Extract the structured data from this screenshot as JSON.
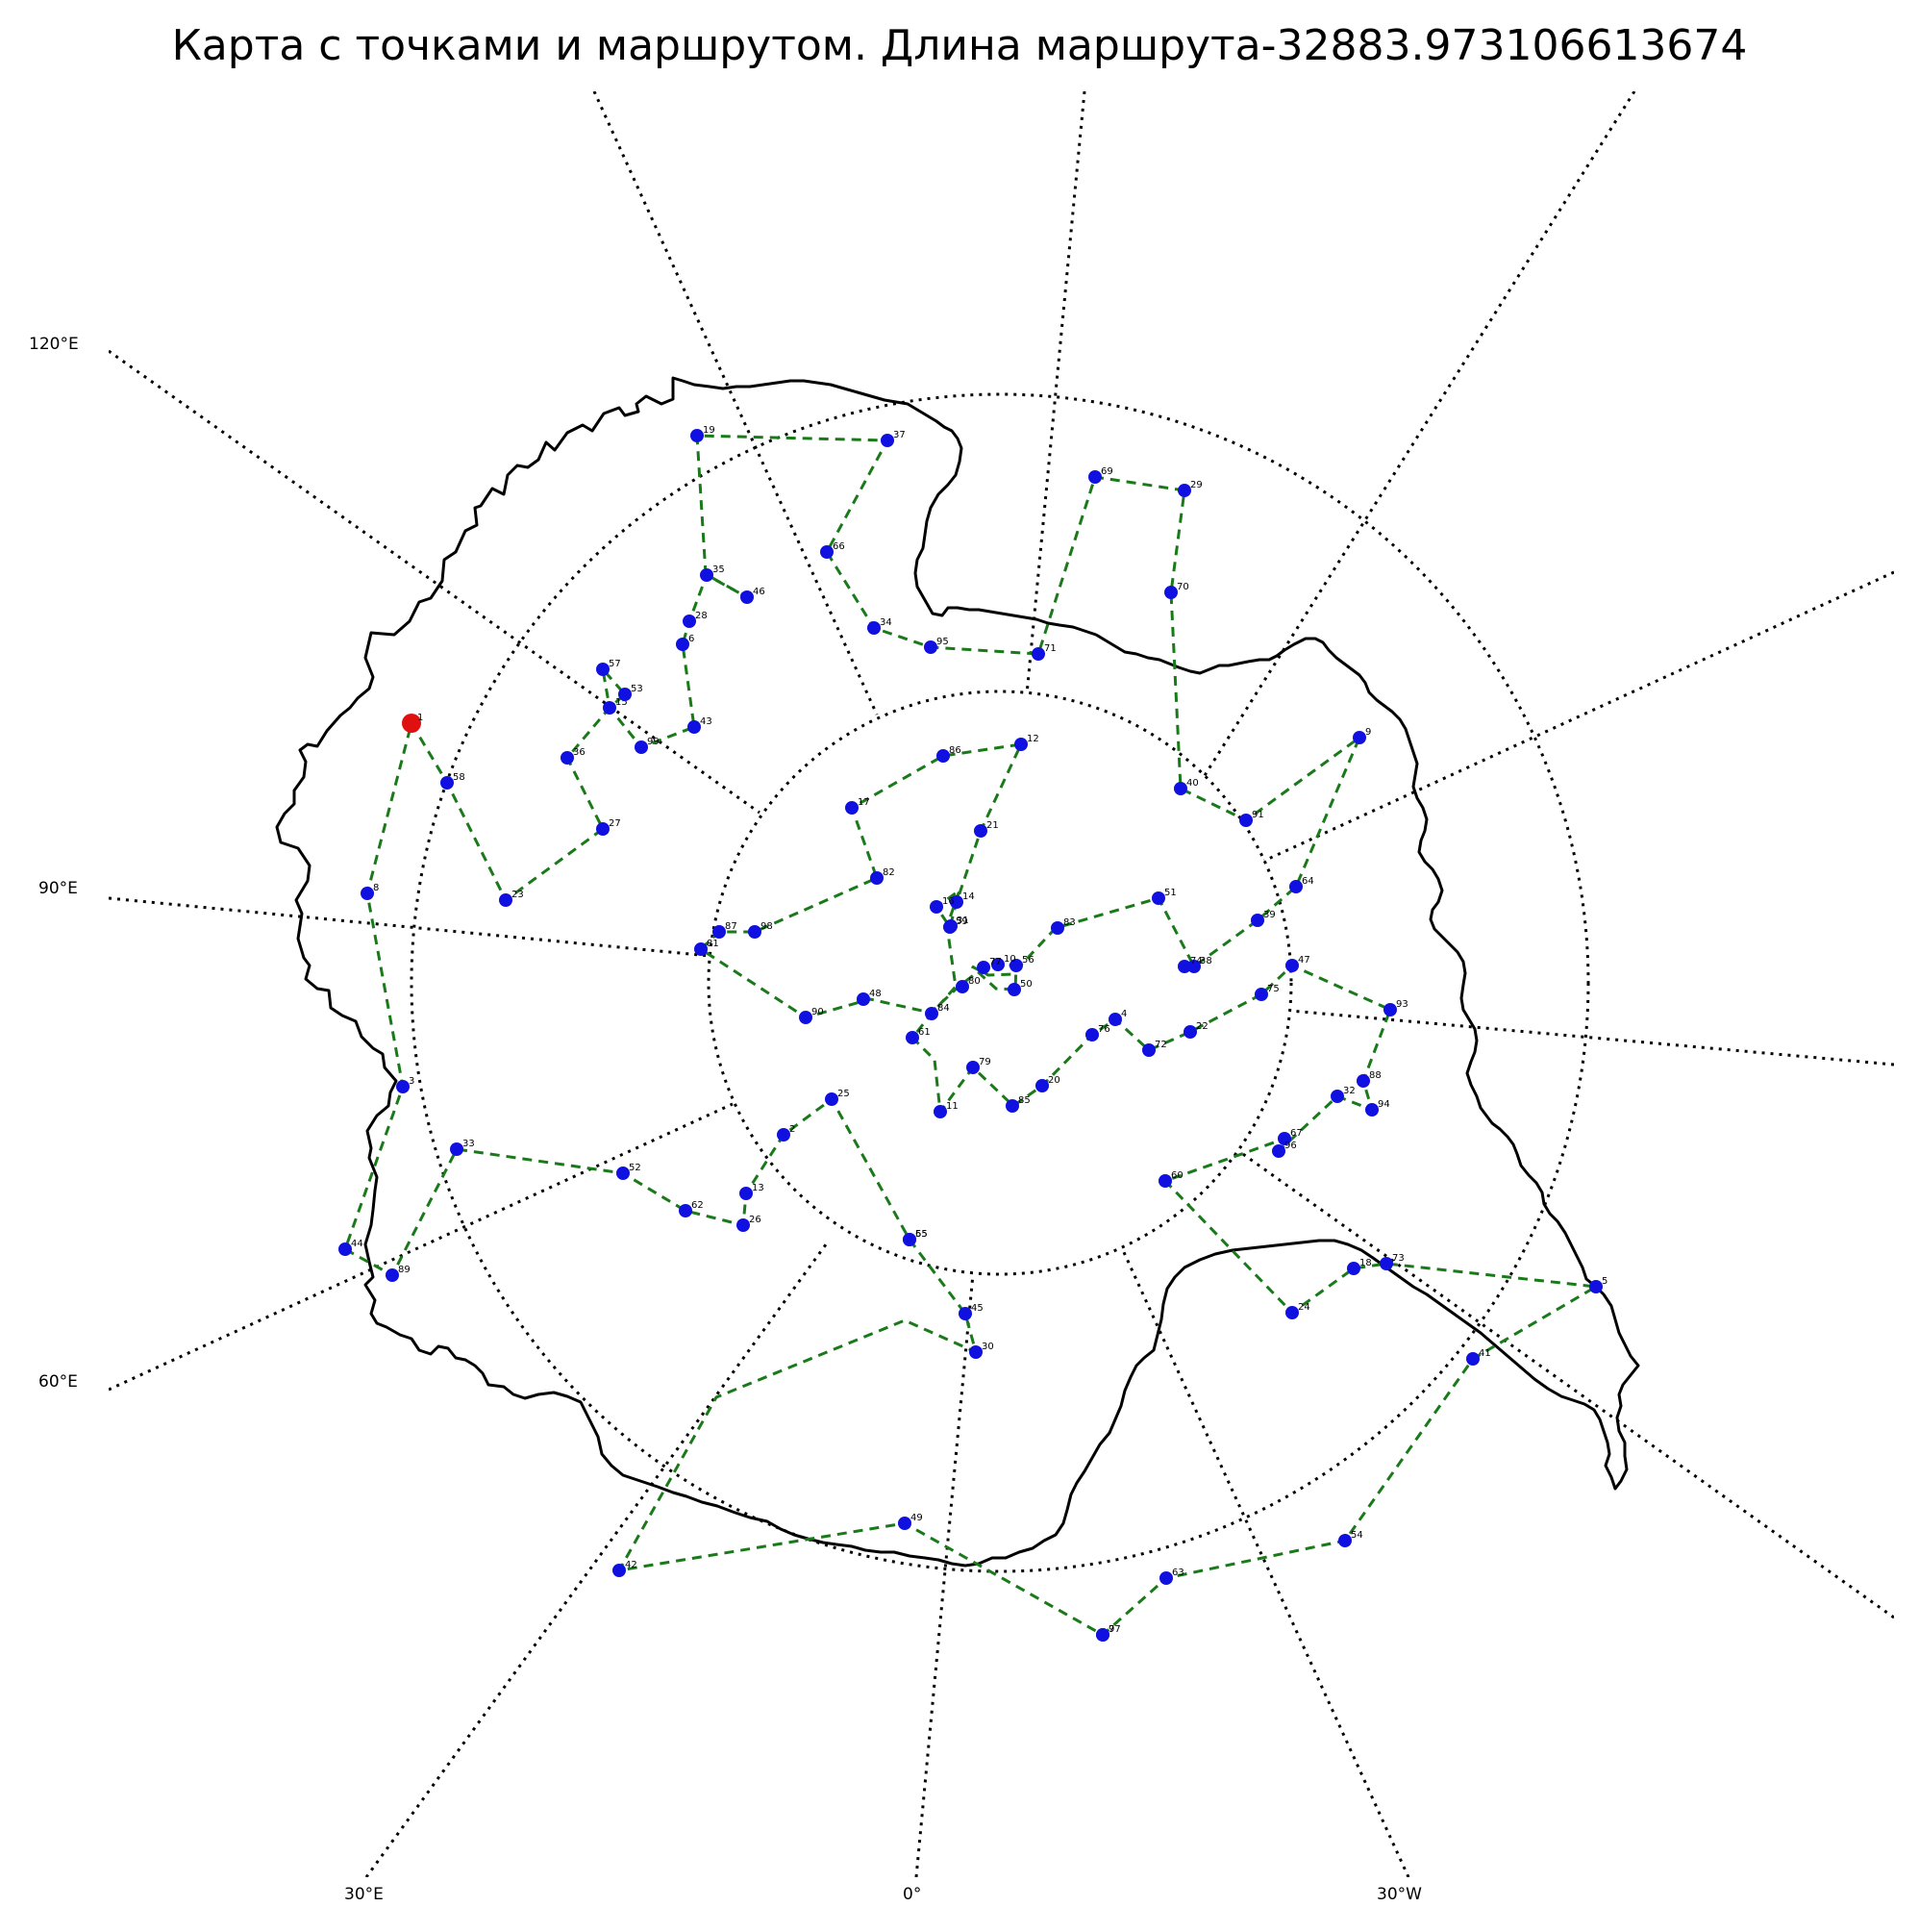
{
  "title": "Карта с точками и маршрутом. Длина маршрута-32883.973106613674",
  "left_labels": [
    "120°E",
    "90°E",
    "60°E"
  ],
  "bottom_labels": [
    "30°E",
    "0°",
    "30°W"
  ],
  "colors": {
    "route": "#1a7a1a",
    "point": "#1010e0",
    "start": "#e01010",
    "coast": "#000000",
    "grid": "#000000"
  },
  "start_point": "1",
  "points": [
    {
      "id": "1",
      "start": true
    },
    {
      "id": "58"
    },
    {
      "id": "23"
    },
    {
      "id": "27"
    },
    {
      "id": "36"
    },
    {
      "id": "15"
    },
    {
      "id": "57"
    },
    {
      "id": "53"
    },
    {
      "id": "99"
    },
    {
      "id": "43"
    },
    {
      "id": "8"
    },
    {
      "id": "6"
    },
    {
      "id": "28"
    },
    {
      "id": "35"
    },
    {
      "id": "46"
    },
    {
      "id": "19"
    },
    {
      "id": "37"
    },
    {
      "id": "66"
    },
    {
      "id": "34"
    },
    {
      "id": "95"
    },
    {
      "id": "71"
    },
    {
      "id": "69"
    },
    {
      "id": "29"
    },
    {
      "id": "70"
    },
    {
      "id": "40"
    },
    {
      "id": "91"
    },
    {
      "id": "9"
    },
    {
      "id": "64"
    },
    {
      "id": "39"
    },
    {
      "id": "38"
    },
    {
      "id": "75"
    },
    {
      "id": "47"
    },
    {
      "id": "93"
    },
    {
      "id": "88"
    },
    {
      "id": "94"
    },
    {
      "id": "32"
    },
    {
      "id": "67"
    },
    {
      "id": "60"
    },
    {
      "id": "24"
    },
    {
      "id": "18"
    },
    {
      "id": "73"
    },
    {
      "id": "5"
    },
    {
      "id": "41"
    },
    {
      "id": "54"
    },
    {
      "id": "63"
    },
    {
      "id": "97"
    },
    {
      "id": "49"
    },
    {
      "id": "42"
    },
    {
      "id": "30"
    },
    {
      "id": "45"
    },
    {
      "id": "65"
    },
    {
      "id": "25"
    },
    {
      "id": "2"
    },
    {
      "id": "62"
    },
    {
      "id": "13"
    },
    {
      "id": "26"
    },
    {
      "id": "52"
    },
    {
      "id": "33"
    },
    {
      "id": "44"
    },
    {
      "id": "89"
    },
    {
      "id": "3"
    },
    {
      "id": "81"
    },
    {
      "id": "87"
    },
    {
      "id": "98"
    },
    {
      "id": "82"
    },
    {
      "id": "17"
    },
    {
      "id": "21"
    },
    {
      "id": "14"
    },
    {
      "id": "59"
    },
    {
      "id": "48"
    },
    {
      "id": "90"
    },
    {
      "id": "80"
    },
    {
      "id": "56"
    },
    {
      "id": "50"
    },
    {
      "id": "10"
    },
    {
      "id": "77"
    },
    {
      "id": "31"
    },
    {
      "id": "16"
    },
    {
      "id": "12"
    },
    {
      "id": "86"
    },
    {
      "id": "83"
    },
    {
      "id": "51"
    },
    {
      "id": "4"
    },
    {
      "id": "76"
    },
    {
      "id": "72"
    },
    {
      "id": "22"
    },
    {
      "id": "20"
    },
    {
      "id": "79"
    },
    {
      "id": "11"
    },
    {
      "id": "61"
    },
    {
      "id": "84"
    },
    {
      "id": "85"
    },
    {
      "id": "74"
    },
    {
      "id": "7"
    },
    {
      "id": "96"
    },
    {
      "id": "55"
    }
  ]
}
